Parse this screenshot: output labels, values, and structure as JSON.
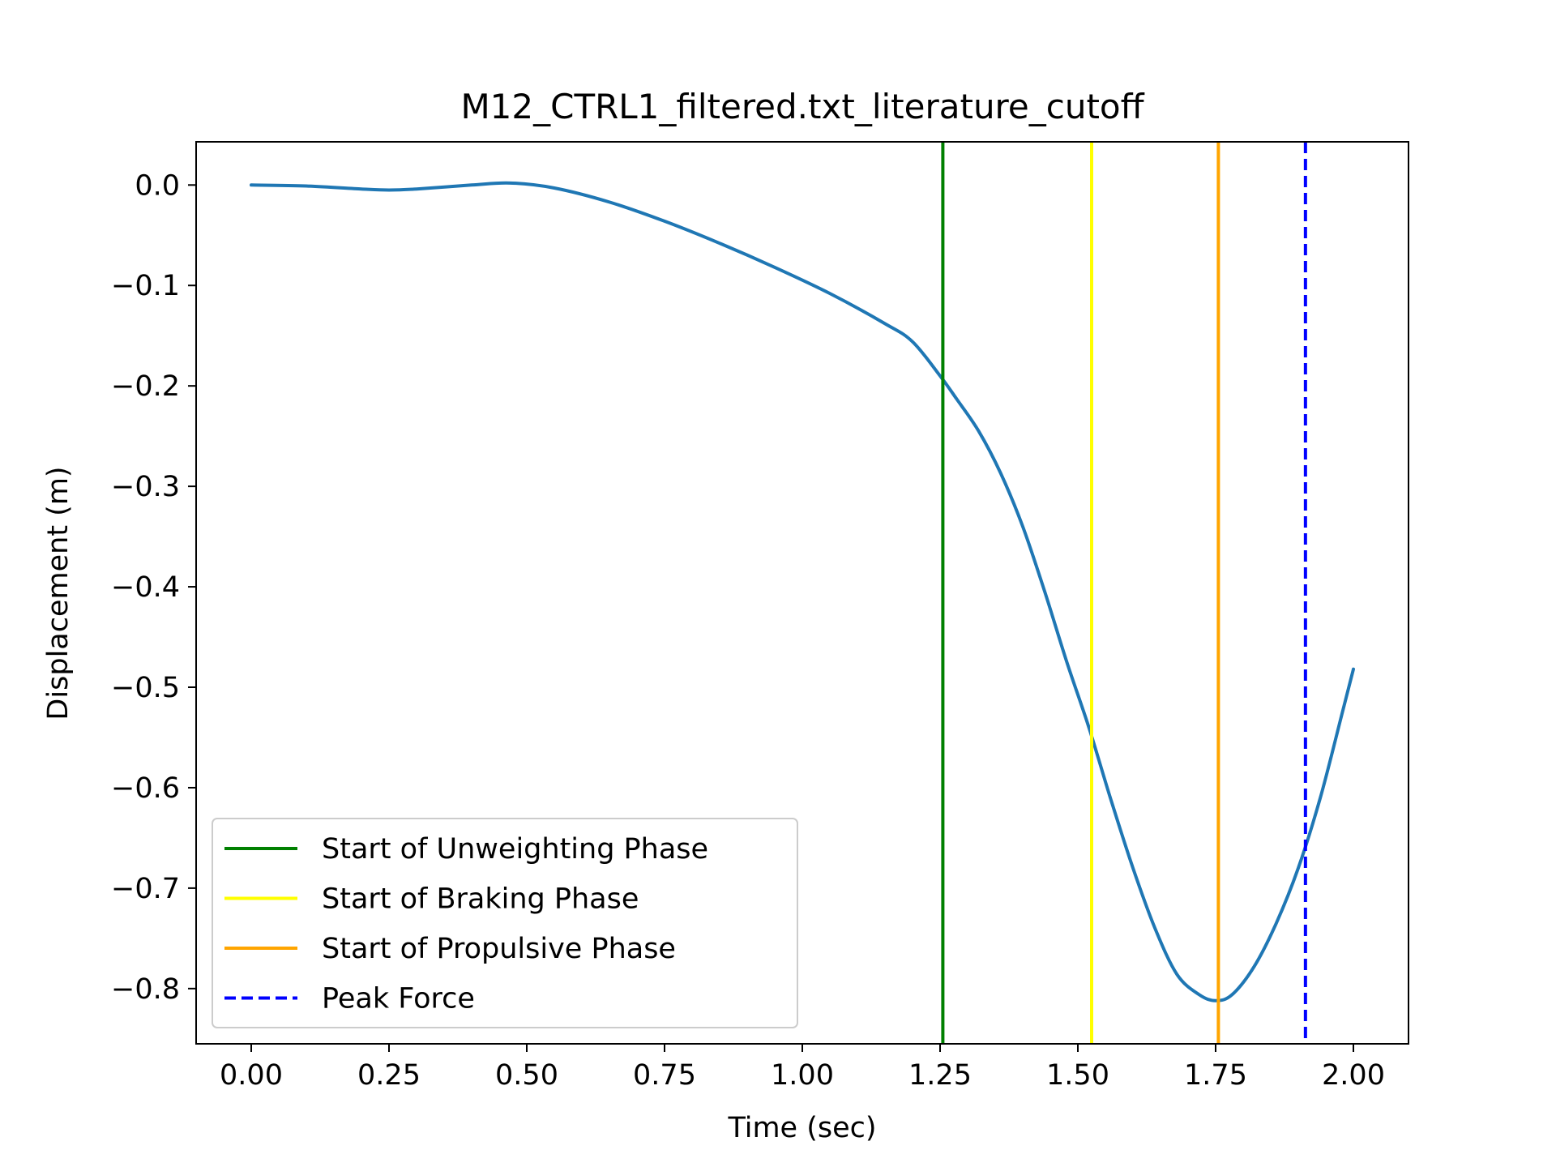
{
  "chart_data": {
    "type": "line",
    "title": "M12_CTRL1_filtered.txt_literature_cutoff",
    "xlabel": "Time (sec)",
    "ylabel": "Displacement (m)",
    "xlim": [
      -0.1,
      2.1
    ],
    "ylim": [
      -0.855,
      0.043
    ],
    "x_ticks": [
      0.0,
      0.25,
      0.5,
      0.75,
      1.0,
      1.25,
      1.5,
      1.75,
      2.0
    ],
    "x_tick_labels": [
      "0.00",
      "0.25",
      "0.50",
      "0.75",
      "1.00",
      "1.25",
      "1.50",
      "1.75",
      "2.00"
    ],
    "y_ticks": [
      0.0,
      -0.1,
      -0.2,
      -0.3,
      -0.4,
      -0.5,
      -0.6,
      -0.7,
      -0.8
    ],
    "y_tick_labels": [
      "0.0",
      "−0.1",
      "−0.2",
      "−0.3",
      "−0.4",
      "−0.5",
      "−0.6",
      "−0.7",
      "−0.8"
    ],
    "grid": false,
    "legend_position": "lower-left",
    "series": [
      {
        "color": "#1f77b4",
        "x": [
          0.0,
          0.1,
          0.2,
          0.25,
          0.3,
          0.4,
          0.47,
          0.55,
          0.65,
          0.75,
          0.85,
          0.95,
          1.05,
          1.15,
          1.2,
          1.25,
          1.28,
          1.32,
          1.36,
          1.4,
          1.44,
          1.48,
          1.52,
          1.56,
          1.6,
          1.64,
          1.68,
          1.72,
          1.75,
          1.78,
          1.82,
          1.86,
          1.9,
          1.94,
          1.98,
          2.0
        ],
        "y": [
          0.0,
          -0.001,
          -0.004,
          -0.005,
          -0.004,
          0.0,
          0.002,
          -0.003,
          -0.017,
          -0.036,
          -0.058,
          -0.082,
          -0.108,
          -0.138,
          -0.156,
          -0.19,
          -0.213,
          -0.245,
          -0.287,
          -0.34,
          -0.405,
          -0.475,
          -0.54,
          -0.612,
          -0.68,
          -0.74,
          -0.786,
          -0.806,
          -0.812,
          -0.806,
          -0.778,
          -0.735,
          -0.68,
          -0.61,
          -0.525,
          -0.482
        ]
      }
    ],
    "vlines": [
      {
        "label": "Start of Unweighting Phase",
        "x": 1.255,
        "color": "#008000",
        "style": "solid"
      },
      {
        "label": "Start of Braking Phase",
        "x": 1.525,
        "color": "#ffff00",
        "style": "solid"
      },
      {
        "label": "Start of Propulsive Phase",
        "x": 1.755,
        "color": "#ffa500",
        "style": "solid"
      },
      {
        "label": "Peak Force",
        "x": 1.913,
        "color": "#0000ff",
        "style": "dashed"
      }
    ]
  }
}
